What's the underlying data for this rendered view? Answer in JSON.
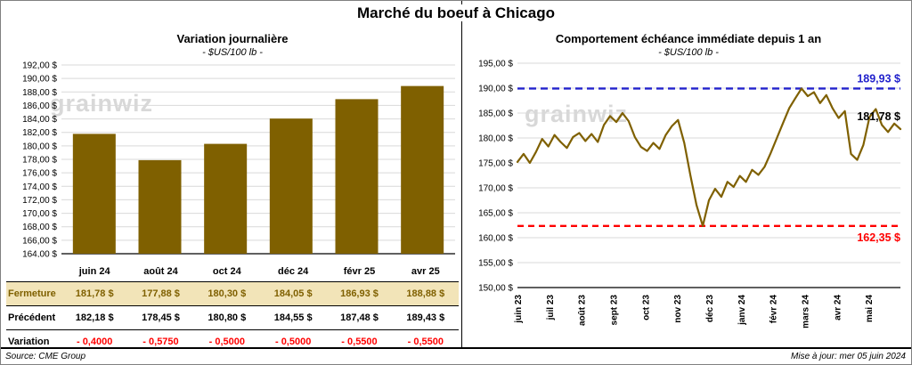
{
  "page": {
    "title": "Marché du boeuf à Chicago",
    "watermark": "grainwiz",
    "footer": {
      "source": "Source: CME Group",
      "updated": "Mise à jour: mer 05 juin 2024"
    }
  },
  "table": {
    "rows": [
      {
        "label": "Fermeture",
        "style": "fermeture",
        "values": [
          "181,78 $",
          "177,88 $",
          "180,30 $",
          "184,05 $",
          "186,93 $",
          "188,88 $"
        ]
      },
      {
        "label": "Précédent",
        "style": "precedent",
        "values": [
          "182,18 $",
          "178,45 $",
          "180,80 $",
          "184,55 $",
          "187,48 $",
          "189,43 $"
        ]
      },
      {
        "label": "Variation",
        "style": "variation",
        "values": [
          "- 0,4000",
          "- 0,5750",
          "- 0,5000",
          "- 0,5000",
          "- 0,5500",
          "- 0,5500"
        ]
      }
    ]
  },
  "chart_data": [
    {
      "type": "bar",
      "title": "Variation journalière",
      "subtitle": "- $US/100 lb -",
      "categories": [
        "juin 24",
        "août 24",
        "oct 24",
        "déc 24",
        "févr 25",
        "avr 25"
      ],
      "values": [
        181.78,
        177.88,
        180.3,
        184.05,
        186.93,
        188.88
      ],
      "ylim": [
        164,
        192
      ],
      "ytick_step": 2,
      "ytick_labels": [
        "192,00 $",
        "190,00 $",
        "188,00 $",
        "186,00 $",
        "184,00 $",
        "182,00 $",
        "180,00 $",
        "178,00 $",
        "176,00 $",
        "174,00 $",
        "172,00 $",
        "170,00 $",
        "168,00 $",
        "166,00 $",
        "164,00 $"
      ],
      "bar_color": "#7F6000",
      "grid": true
    },
    {
      "type": "line",
      "title": "Comportement échéance immédiate depuis 1 an",
      "subtitle": "- $US/100 lb -",
      "x_ticks": [
        "juin 23",
        "juil 23",
        "août 23",
        "sept 23",
        "oct 23",
        "nov 23",
        "déc 23",
        "janv 24",
        "févr 24",
        "mars 24",
        "avr 24",
        "mai 24"
      ],
      "values": [
        175.2,
        176.8,
        175.0,
        177.2,
        179.8,
        178.3,
        180.6,
        179.2,
        178.0,
        180.2,
        181.0,
        179.4,
        180.8,
        179.2,
        182.6,
        184.4,
        183.2,
        185.0,
        183.4,
        180.2,
        178.2,
        177.4,
        179.0,
        177.8,
        180.6,
        182.4,
        183.6,
        179.0,
        172.5,
        166.5,
        162.35,
        167.5,
        169.8,
        168.2,
        171.2,
        170.2,
        172.4,
        171.2,
        173.6,
        172.6,
        174.2,
        177.0,
        180.0,
        183.0,
        186.0,
        188.0,
        189.93,
        188.4,
        189.2,
        187.0,
        188.6,
        186.0,
        184.0,
        185.4,
        176.8,
        175.6,
        178.6,
        184.2,
        185.8,
        182.6,
        181.2,
        182.9,
        181.78
      ],
      "ylim": [
        150,
        195
      ],
      "ytick_step": 5,
      "ytick_labels": [
        "195,00 $",
        "190,00 $",
        "185,00 $",
        "180,00 $",
        "175,00 $",
        "170,00 $",
        "165,00 $",
        "160,00 $",
        "155,00 $",
        "150,00 $"
      ],
      "line_color": "#7F6000",
      "max_line": {
        "value": 189.93,
        "label": "189,93 $",
        "color": "#2222CC"
      },
      "min_line": {
        "value": 162.35,
        "label": "162,35 $",
        "color": "#FF0000"
      },
      "last_point_label": "181,78 $",
      "grid": true
    }
  ]
}
